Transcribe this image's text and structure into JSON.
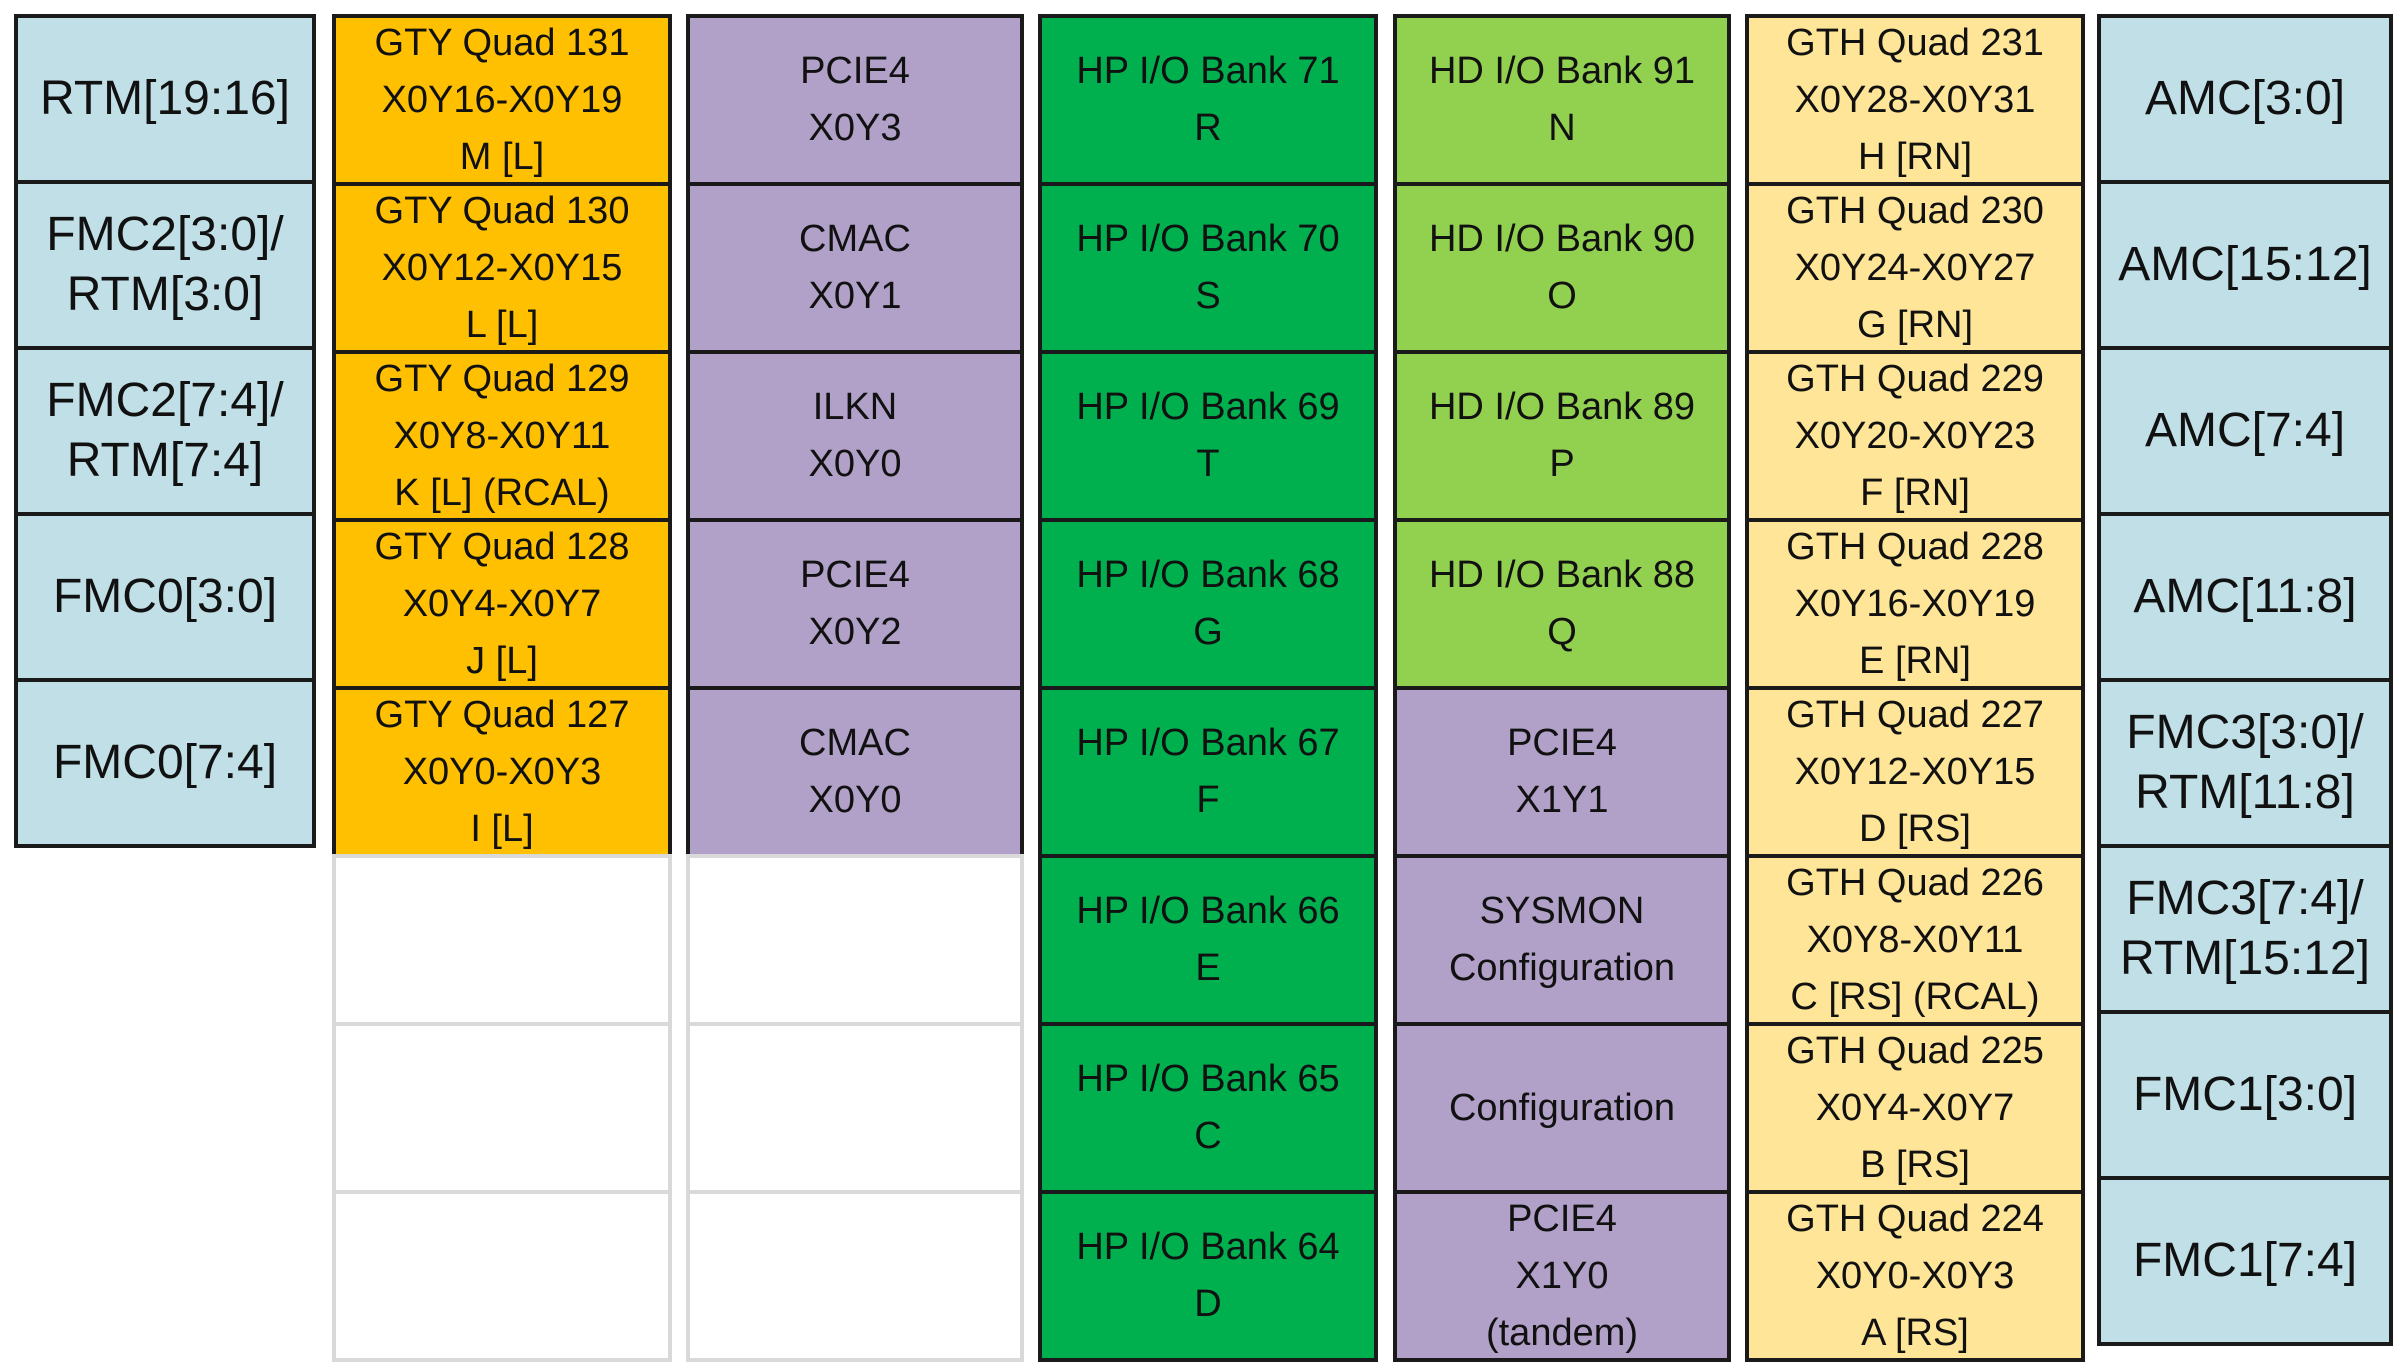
{
  "colors": {
    "connector": "#c0dfe6",
    "gty": "#fec000",
    "hard_block": "#b1a0c7",
    "hp_io": "#00b04f",
    "hd_io": "#92d050",
    "gth": "#fee597",
    "empty_border": "#d9d9d9"
  },
  "columns": [
    {
      "kind": "left-connectors",
      "cells": [
        {
          "text": "RTM[19:16]",
          "color": "connector"
        },
        {
          "text": "FMC2[3:0]/\nRTM[3:0]",
          "color": "connector"
        },
        {
          "text": "FMC2[7:4]/\nRTM[7:4]",
          "color": "connector"
        },
        {
          "text": "FMC0[3:0]",
          "color": "connector"
        },
        {
          "text": "FMC0[7:4]",
          "color": "connector"
        }
      ]
    },
    {
      "kind": "gty-quads",
      "cells": [
        {
          "text": "GTY Quad 131\nX0Y16-X0Y19\nM [L]",
          "color": "gty"
        },
        {
          "text": "GTY Quad 130\nX0Y12-X0Y15\nL [L]",
          "color": "gty"
        },
        {
          "text": "GTY Quad 129\nX0Y8-X0Y11\nK [L] (RCAL)",
          "color": "gty"
        },
        {
          "text": "GTY Quad 128\nX0Y4-X0Y7\nJ [L]",
          "color": "gty"
        },
        {
          "text": "GTY Quad 127\nX0Y0-X0Y3\nI [L]",
          "color": "gty"
        },
        {
          "text": "",
          "color": "empty"
        },
        {
          "text": "",
          "color": "empty"
        },
        {
          "text": "",
          "color": "empty"
        }
      ]
    },
    {
      "kind": "hard-blocks-left",
      "cells": [
        {
          "text": "PCIE4\nX0Y3",
          "color": "hard_block"
        },
        {
          "text": "CMAC\nX0Y1",
          "color": "hard_block"
        },
        {
          "text": "ILKN\nX0Y0",
          "color": "hard_block"
        },
        {
          "text": "PCIE4\nX0Y2",
          "color": "hard_block"
        },
        {
          "text": "CMAC\nX0Y0",
          "color": "hard_block"
        },
        {
          "text": "",
          "color": "empty"
        },
        {
          "text": "",
          "color": "empty"
        },
        {
          "text": "",
          "color": "empty"
        }
      ]
    },
    {
      "kind": "hp-io-banks",
      "cells": [
        {
          "text": "HP I/O Bank 71\nR",
          "color": "hp_io"
        },
        {
          "text": "HP I/O Bank 70\nS",
          "color": "hp_io"
        },
        {
          "text": "HP I/O Bank 69\nT",
          "color": "hp_io"
        },
        {
          "text": "HP I/O Bank 68\nG",
          "color": "hp_io"
        },
        {
          "text": "HP I/O Bank 67\nF",
          "color": "hp_io"
        },
        {
          "text": "HP I/O Bank 66\nE",
          "color": "hp_io"
        },
        {
          "text": "HP I/O Bank 65\nC",
          "color": "hp_io"
        },
        {
          "text": "HP I/O Bank 64\nD",
          "color": "hp_io"
        }
      ]
    },
    {
      "kind": "hd-io-banks",
      "cells": [
        {
          "text": "HD I/O Bank 91\nN",
          "color": "hd_io"
        },
        {
          "text": "HD I/O Bank 90\nO",
          "color": "hd_io"
        },
        {
          "text": "HD I/O Bank 89\nP",
          "color": "hd_io"
        },
        {
          "text": "HD I/O Bank 88\nQ",
          "color": "hd_io"
        },
        {
          "text": "PCIE4\nX1Y1",
          "color": "hard_block"
        },
        {
          "text": "SYSMON\nConfiguration",
          "color": "hard_block"
        },
        {
          "text": "Configuration",
          "color": "hard_block"
        },
        {
          "text": "PCIE4\nX1Y0\n(tandem)",
          "color": "hard_block"
        }
      ]
    },
    {
      "kind": "gth-quads",
      "cells": [
        {
          "text": "GTH Quad 231\nX0Y28-X0Y31\nH [RN]",
          "color": "gth"
        },
        {
          "text": "GTH Quad 230\nX0Y24-X0Y27\nG [RN]",
          "color": "gth"
        },
        {
          "text": "GTH Quad 229\nX0Y20-X0Y23\nF [RN]",
          "color": "gth"
        },
        {
          "text": "GTH Quad 228\nX0Y16-X0Y19\nE [RN]",
          "color": "gth"
        },
        {
          "text": "GTH Quad 227\nX0Y12-X0Y15\nD [RS]",
          "color": "gth"
        },
        {
          "text": "GTH Quad 226\nX0Y8-X0Y11\nC [RS] (RCAL)",
          "color": "gth"
        },
        {
          "text": "GTH Quad 225\nX0Y4-X0Y7\nB [RS]",
          "color": "gth"
        },
        {
          "text": "GTH Quad 224\nX0Y0-X0Y3\nA [RS]",
          "color": "gth"
        }
      ]
    },
    {
      "kind": "right-connectors",
      "cells": [
        {
          "text": "AMC[3:0]",
          "color": "connector"
        },
        {
          "text": "AMC[15:12]",
          "color": "connector"
        },
        {
          "text": "AMC[7:4]",
          "color": "connector"
        },
        {
          "text": "AMC[11:8]",
          "color": "connector"
        },
        {
          "text": "FMC3[3:0]/\nRTM[11:8]",
          "color": "connector"
        },
        {
          "text": "FMC3[7:4]/\nRTM[15:12]",
          "color": "connector"
        },
        {
          "text": "FMC1[3:0]",
          "color": "connector"
        },
        {
          "text": "FMC1[7:4]",
          "color": "connector"
        }
      ]
    }
  ]
}
